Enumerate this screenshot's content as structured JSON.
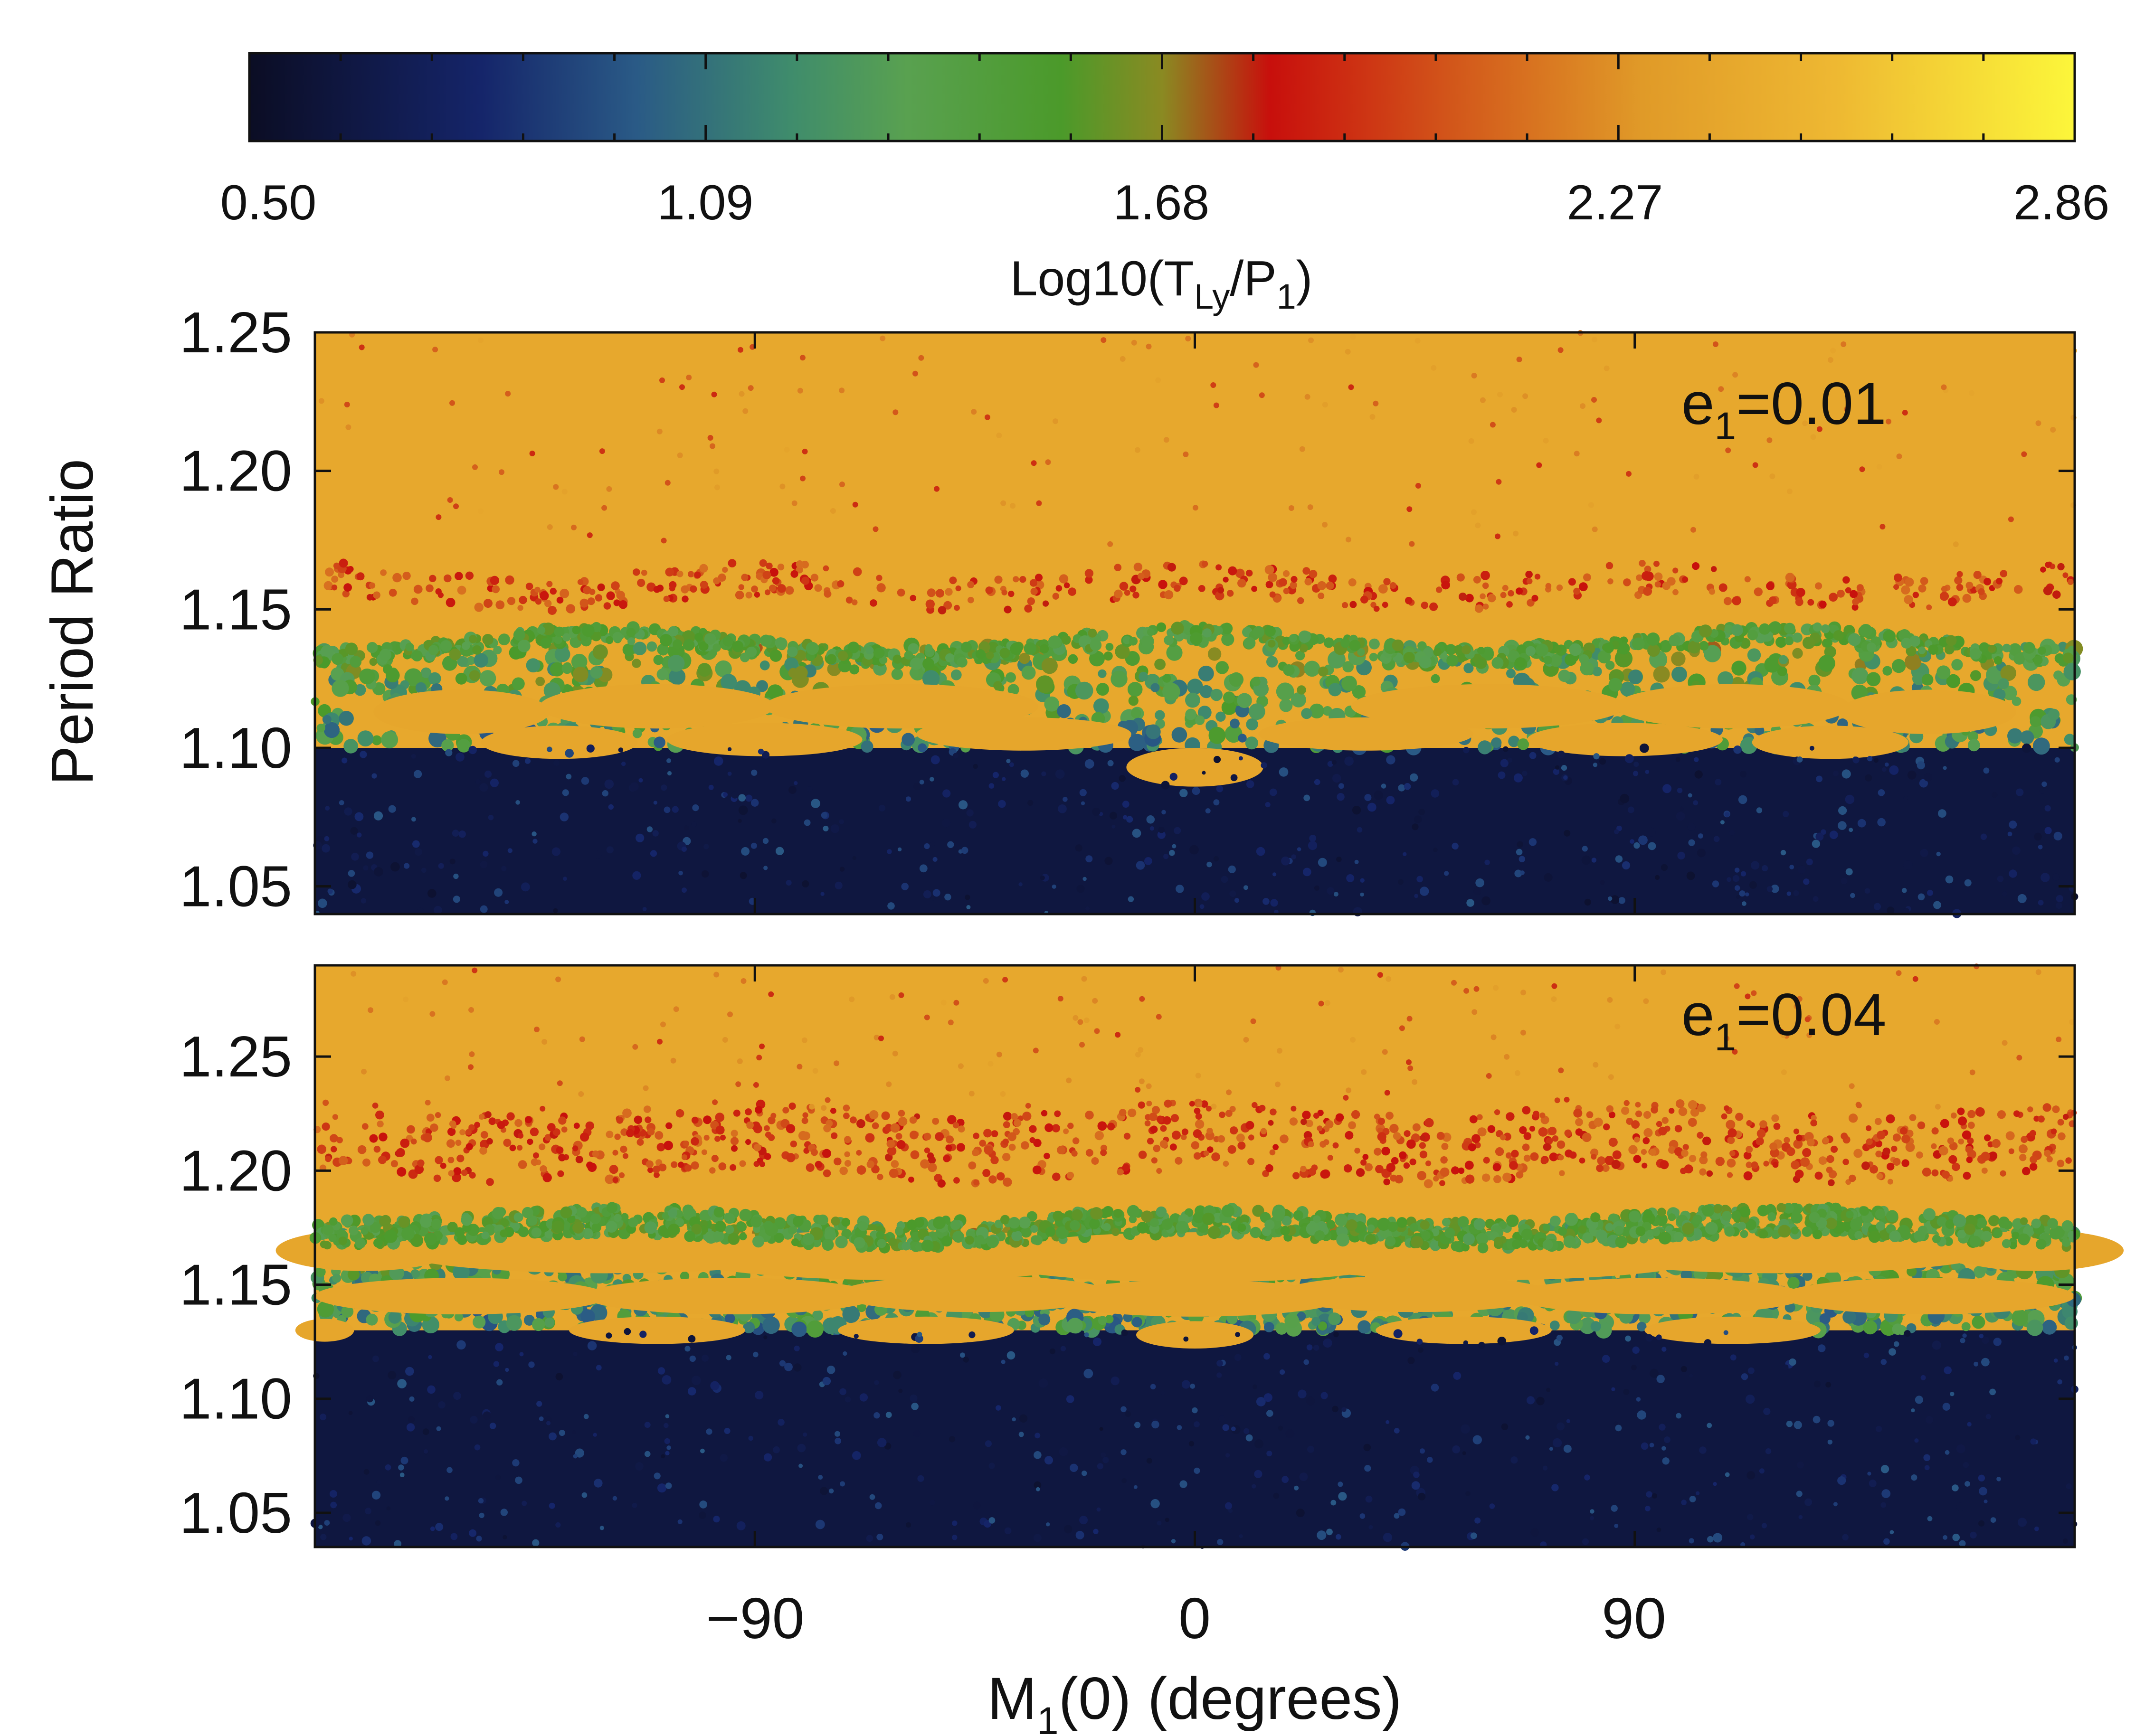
{
  "chart_data": {
    "type": "heatmap",
    "colorbar": {
      "title": "Log10(T",
      "title_sub1": "Ly",
      "title_mid": "/P",
      "title_sub2": "1",
      "title_end": ")",
      "range": [
        0.5,
        2.86
      ],
      "tick_labels": [
        "0.50",
        "1.09",
        "1.68",
        "2.27",
        "2.86"
      ],
      "tick_values": [
        0.5,
        1.09,
        1.68,
        2.27,
        2.86
      ],
      "stops": [
        {
          "v": 0.5,
          "color": "#0b0d24"
        },
        {
          "v": 0.8,
          "color": "#15256a"
        },
        {
          "v": 1.0,
          "color": "#2a5a86"
        },
        {
          "v": 1.2,
          "color": "#3f8c6c"
        },
        {
          "v": 1.35,
          "color": "#59a150"
        },
        {
          "v": 1.55,
          "color": "#4b9a2a"
        },
        {
          "v": 1.68,
          "color": "#8a8a22"
        },
        {
          "v": 1.82,
          "color": "#c80f0c"
        },
        {
          "v": 2.05,
          "color": "#d2551a"
        },
        {
          "v": 2.3,
          "color": "#e09a28"
        },
        {
          "v": 2.55,
          "color": "#eeb832"
        },
        {
          "v": 2.86,
          "color": "#fcf63a"
        }
      ]
    },
    "x_axis": {
      "label_main": "M",
      "label_sub": "1",
      "label_rest": "(0) (degrees)",
      "range": [
        -180,
        180
      ],
      "tick_values": [
        -90,
        0,
        90
      ],
      "tick_labels": [
        "−90",
        "0",
        "90"
      ]
    },
    "y_axis": {
      "label": "Period Ratio"
    },
    "panels": [
      {
        "annotation_main": "e",
        "annotation_sub": "1",
        "annotation_rest": "=0.01",
        "eccentricity": 0.01,
        "ylim": [
          1.04,
          1.25
        ],
        "y_tick_values": [
          1.05,
          1.1,
          1.15,
          1.2,
          1.25
        ],
        "y_tick_labels": [
          "1.05",
          "1.10",
          "1.15",
          "1.20",
          "1.25"
        ],
        "chaotic_boundary": 1.1,
        "green_band_center": 1.137,
        "red_band_center": 1.158,
        "islands": [
          {
            "m": -150,
            "p": 1.113,
            "w": 18,
            "h": 0.008
          },
          {
            "m": -130,
            "p": 1.102,
            "w": 16,
            "h": 0.006
          },
          {
            "m": -110,
            "p": 1.115,
            "w": 24,
            "h": 0.008
          },
          {
            "m": -88,
            "p": 1.103,
            "w": 20,
            "h": 0.006
          },
          {
            "m": -60,
            "p": 1.115,
            "w": 28,
            "h": 0.008
          },
          {
            "m": -35,
            "p": 1.105,
            "w": 22,
            "h": 0.006
          },
          {
            "m": 0,
            "p": 1.093,
            "w": 14,
            "h": 0.007
          },
          {
            "m": 35,
            "p": 1.105,
            "w": 22,
            "h": 0.006
          },
          {
            "m": 60,
            "p": 1.115,
            "w": 28,
            "h": 0.008
          },
          {
            "m": 88,
            "p": 1.103,
            "w": 20,
            "h": 0.006
          },
          {
            "m": 110,
            "p": 1.115,
            "w": 24,
            "h": 0.008
          },
          {
            "m": 130,
            "p": 1.102,
            "w": 16,
            "h": 0.006
          },
          {
            "m": 150,
            "p": 1.113,
            "w": 18,
            "h": 0.008
          }
        ]
      },
      {
        "annotation_main": "e",
        "annotation_sub": "1",
        "annotation_rest": "=0.04",
        "eccentricity": 0.04,
        "ylim": [
          1.035,
          1.29
        ],
        "y_tick_values": [
          1.05,
          1.1,
          1.15,
          1.2,
          1.25
        ],
        "y_tick_labels": [
          "1.05",
          "1.10",
          "1.15",
          "1.20",
          "1.25"
        ],
        "chaotic_boundary": 1.13,
        "green_band_center": 1.175,
        "red_band_center": 1.212,
        "islands": [
          {
            "m": -170,
            "p": 1.165,
            "w": 18,
            "h": 0.009
          },
          {
            "m": -120,
            "p": 1.165,
            "w": 44,
            "h": 0.01
          },
          {
            "m": -60,
            "p": 1.163,
            "w": 46,
            "h": 0.011
          },
          {
            "m": 0,
            "p": 1.162,
            "w": 44,
            "h": 0.011
          },
          {
            "m": 60,
            "p": 1.163,
            "w": 46,
            "h": 0.011
          },
          {
            "m": 120,
            "p": 1.165,
            "w": 44,
            "h": 0.01
          },
          {
            "m": 172,
            "p": 1.165,
            "w": 18,
            "h": 0.009
          },
          {
            "m": -150,
            "p": 1.145,
            "w": 30,
            "h": 0.008
          },
          {
            "m": -95,
            "p": 1.145,
            "w": 30,
            "h": 0.008
          },
          {
            "m": -45,
            "p": 1.146,
            "w": 28,
            "h": 0.008
          },
          {
            "m": 0,
            "p": 1.144,
            "w": 30,
            "h": 0.008
          },
          {
            "m": 45,
            "p": 1.146,
            "w": 28,
            "h": 0.008
          },
          {
            "m": 95,
            "p": 1.145,
            "w": 30,
            "h": 0.008
          },
          {
            "m": 150,
            "p": 1.145,
            "w": 30,
            "h": 0.008
          },
          {
            "m": -178,
            "p": 1.13,
            "w": 6,
            "h": 0.005
          },
          {
            "m": -110,
            "p": 1.13,
            "w": 18,
            "h": 0.006
          },
          {
            "m": -55,
            "p": 1.13,
            "w": 18,
            "h": 0.006
          },
          {
            "m": 0,
            "p": 1.128,
            "w": 12,
            "h": 0.006
          },
          {
            "m": 55,
            "p": 1.13,
            "w": 18,
            "h": 0.006
          },
          {
            "m": 110,
            "p": 1.13,
            "w": 18,
            "h": 0.006
          }
        ]
      }
    ]
  }
}
